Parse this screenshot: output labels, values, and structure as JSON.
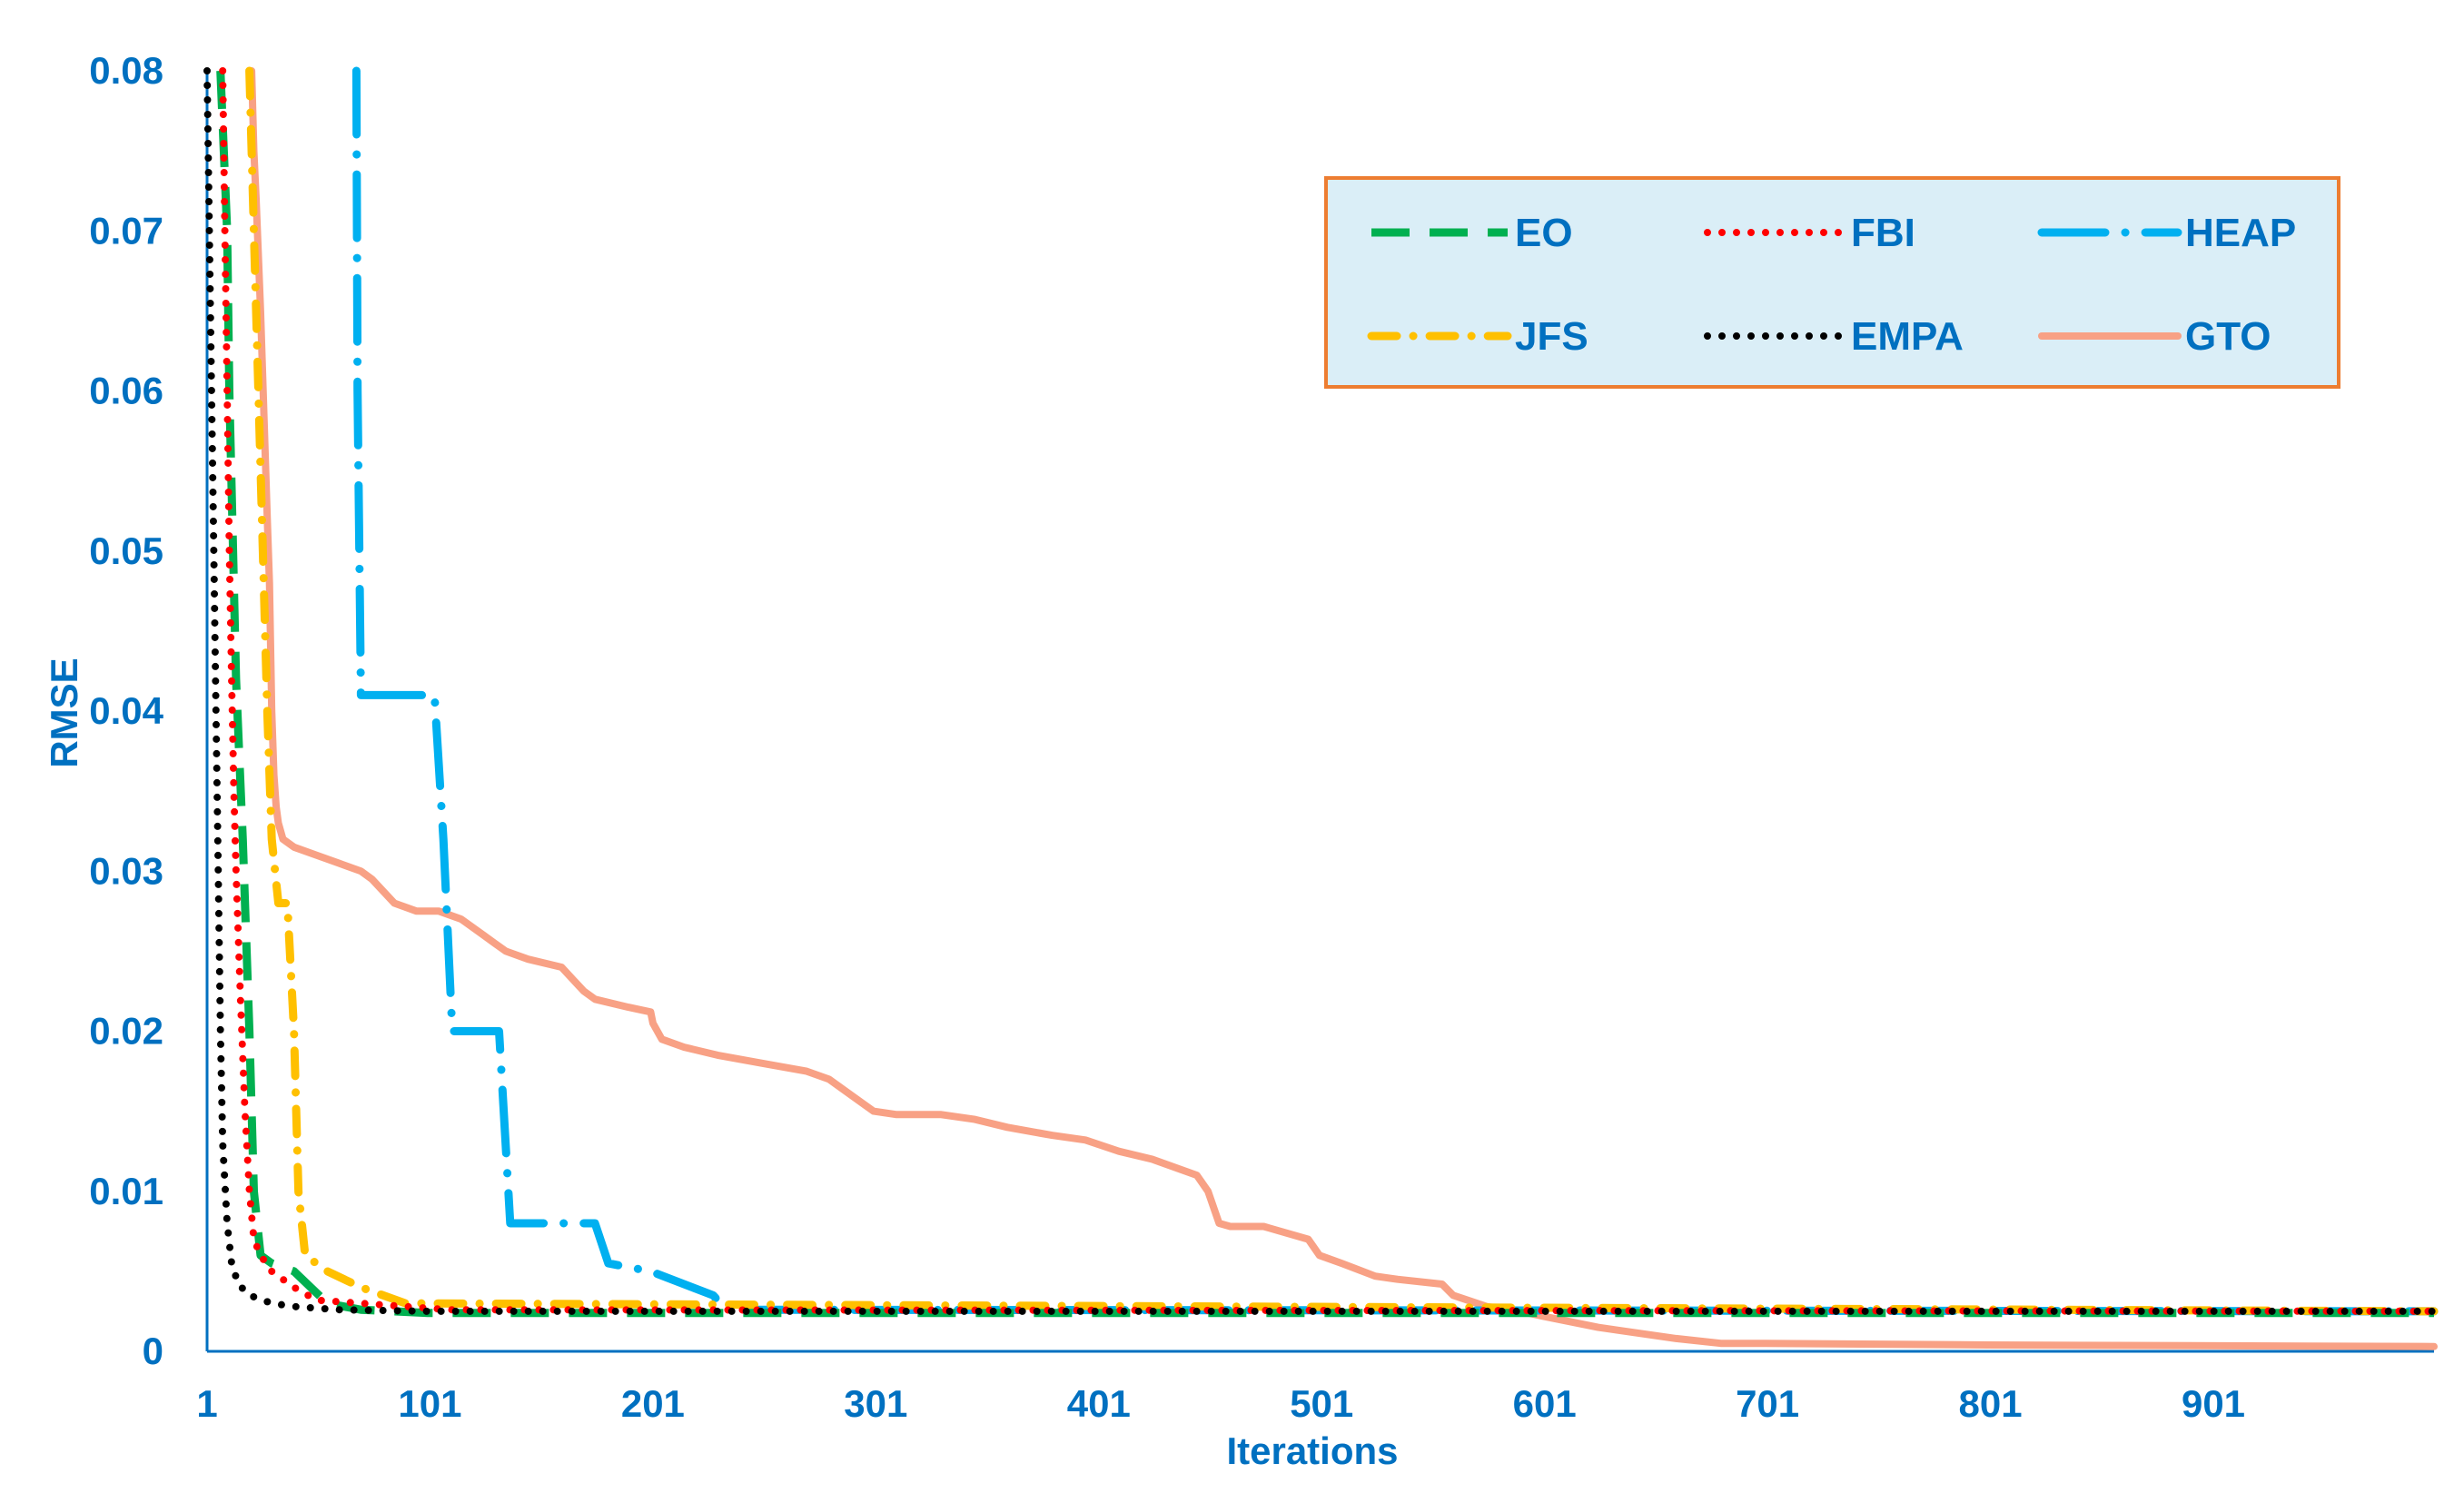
{
  "chart_data": {
    "type": "line",
    "title": "",
    "xlabel": "Iterations",
    "ylabel": "RMSE",
    "xlim": [
      1,
      1000
    ],
    "ylim": [
      0,
      0.08
    ],
    "x_ticks": [
      1,
      101,
      201,
      301,
      401,
      501,
      601,
      701,
      801,
      901
    ],
    "x_tick_labels": [
      "1",
      "101",
      "201",
      "301",
      "401",
      "501",
      "601",
      "701",
      "801",
      "901"
    ],
    "y_ticks": [
      0,
      0.01,
      0.02,
      0.03,
      0.04,
      0.05,
      0.06,
      0.07,
      0.08
    ],
    "y_tick_labels": [
      "0",
      "0.01",
      "0.02",
      "0.03",
      "0.04",
      "0.05",
      "0.06",
      "0.07",
      "0.08"
    ],
    "grid": false,
    "legend_position": "top-right",
    "series": [
      {
        "name": "EO",
        "color": "#00B050",
        "dash": "long-dash",
        "x": [
          7,
          10,
          11,
          14,
          17,
          20,
          22,
          25,
          30,
          40,
          55,
          70,
          100,
          1000
        ],
        "y": [
          0.08,
          0.07,
          0.06,
          0.042,
          0.032,
          0.02,
          0.01,
          0.006,
          0.0055,
          0.005,
          0.003,
          0.0026,
          0.0024,
          0.0024
        ]
      },
      {
        "name": "FBI",
        "color": "#FF0000",
        "dash": "dotted",
        "x": [
          8,
          9,
          10,
          11,
          12,
          13,
          14,
          16,
          18,
          20,
          22,
          25,
          30,
          40,
          50,
          70,
          90,
          110,
          1000
        ],
        "y": [
          0.08,
          0.07,
          0.06,
          0.05,
          0.042,
          0.035,
          0.03,
          0.022,
          0.015,
          0.01,
          0.007,
          0.006,
          0.005,
          0.004,
          0.0032,
          0.003,
          0.0028,
          0.0026,
          0.0025
        ]
      },
      {
        "name": "HEAP",
        "color": "#00B0F0",
        "dash": "long-dash-dot",
        "x": [
          68,
          68.5,
          70,
          103,
          107,
          111,
          132,
          137,
          175,
          181,
          200,
          228,
          234,
          1000
        ],
        "y": [
          0.08,
          0.06,
          0.041,
          0.041,
          0.032,
          0.02,
          0.02,
          0.008,
          0.008,
          0.0055,
          0.005,
          0.0035,
          0.0026,
          0.0025
        ]
      },
      {
        "name": "JFS",
        "color": "#FFC000",
        "dash": "dash-dot",
        "x": [
          20,
          22,
          24,
          26,
          28,
          30,
          33,
          37,
          40,
          42,
          45,
          55,
          70,
          90,
          1000
        ],
        "y": [
          0.08,
          0.07,
          0.06,
          0.05,
          0.04,
          0.032,
          0.028,
          0.028,
          0.02,
          0.01,
          0.006,
          0.005,
          0.004,
          0.003,
          0.0025
        ]
      },
      {
        "name": "EMPA",
        "color": "#000000",
        "dash": "dotted",
        "x": [
          1,
          2,
          3,
          4,
          5,
          6,
          7,
          8,
          10,
          12,
          15,
          20,
          30,
          40,
          60,
          100,
          1000
        ],
        "y": [
          0.08,
          0.07,
          0.06,
          0.05,
          0.04,
          0.03,
          0.02,
          0.013,
          0.008,
          0.0055,
          0.0042,
          0.0035,
          0.003,
          0.0028,
          0.0026,
          0.0025,
          0.0025
        ]
      },
      {
        "name": "GTO",
        "color": "#F8A185",
        "dash": "solid",
        "x": [
          21,
          22,
          23,
          25,
          28,
          29,
          30,
          31,
          32,
          33,
          35,
          40,
          50,
          60,
          70,
          75,
          85,
          95,
          105,
          115,
          125,
          130,
          135,
          145,
          160,
          170,
          175,
          190,
          200,
          201,
          205,
          215,
          230,
          250,
          270,
          280,
          290,
          300,
          310,
          330,
          345,
          360,
          380,
          395,
          410,
          425,
          445,
          450,
          455,
          460,
          475,
          495,
          500,
          510,
          525,
          535,
          555,
          560,
          575,
          590,
          600,
          625,
          660,
          680,
          700,
          800,
          1000
        ],
        "y": [
          0.08,
          0.075,
          0.072,
          0.065,
          0.052,
          0.048,
          0.04,
          0.036,
          0.034,
          0.033,
          0.032,
          0.0315,
          0.031,
          0.0305,
          0.03,
          0.0295,
          0.028,
          0.0275,
          0.0275,
          0.027,
          0.026,
          0.0255,
          0.025,
          0.0245,
          0.024,
          0.0225,
          0.022,
          0.0215,
          0.0212,
          0.0205,
          0.0195,
          0.019,
          0.0185,
          0.018,
          0.0175,
          0.017,
          0.016,
          0.015,
          0.0148,
          0.0148,
          0.0145,
          0.014,
          0.0135,
          0.0132,
          0.0125,
          0.012,
          0.011,
          0.01,
          0.008,
          0.0078,
          0.0078,
          0.007,
          0.006,
          0.0055,
          0.0047,
          0.0045,
          0.0042,
          0.0035,
          0.0028,
          0.0025,
          0.0022,
          0.0015,
          0.0008,
          0.0005,
          0.0005,
          0.0004,
          0.0003
        ]
      }
    ]
  },
  "legend": {
    "items": [
      {
        "name": "EO",
        "color": "#00B050"
      },
      {
        "name": "FBI",
        "color": "#FF0000"
      },
      {
        "name": "HEAP",
        "color": "#00B0F0"
      },
      {
        "name": "JFS",
        "color": "#FFC000"
      },
      {
        "name": "EMPA",
        "color": "#000000"
      },
      {
        "name": "GTO",
        "color": "#F8A185"
      }
    ],
    "background": "#DAEEF7",
    "border_color": "#ED7D31"
  }
}
